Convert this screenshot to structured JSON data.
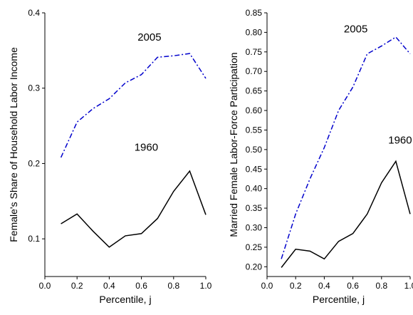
{
  "chart_data": [
    {
      "type": "line",
      "xlabel": "Percentile, j",
      "ylabel": "Female's Share of Household Labor Income",
      "xlim": [
        0.0,
        1.0
      ],
      "ylim": [
        0.05,
        0.4
      ],
      "xticks": [
        "0.0",
        "0.2",
        "0.4",
        "0.6",
        "0.8",
        "1.0"
      ],
      "yticks": [
        "0.1",
        "0.2",
        "0.3",
        "0.4"
      ],
      "grid": false,
      "x": [
        0.1,
        0.2,
        0.3,
        0.4,
        0.5,
        0.6,
        0.7,
        0.8,
        0.9,
        1.0
      ],
      "series": [
        {
          "name": "2005",
          "color": "#0000cc",
          "style": "dash-dot",
          "values": [
            0.208,
            0.255,
            0.273,
            0.286,
            0.307,
            0.318,
            0.341,
            0.343,
            0.346,
            0.313
          ]
        },
        {
          "name": "1960",
          "color": "#000000",
          "style": "solid",
          "values": [
            0.12,
            0.133,
            0.11,
            0.089,
            0.104,
            0.107,
            0.127,
            0.163,
            0.19,
            0.132
          ]
        }
      ],
      "annotations": [
        {
          "text": "2005",
          "x": 0.65,
          "y": 0.363
        },
        {
          "text": "1960",
          "x": 0.63,
          "y": 0.217
        }
      ]
    },
    {
      "type": "line",
      "xlabel": "Percentile, j",
      "ylabel": "Married Female Labor-Force Participation",
      "xlim": [
        0.0,
        1.0
      ],
      "ylim": [
        0.175,
        0.85
      ],
      "xticks": [
        "0.0",
        "0.2",
        "0.4",
        "0.6",
        "0.8",
        "1.0"
      ],
      "yticks": [
        "0.20",
        "0.25",
        "0.30",
        "0.35",
        "0.40",
        "0.45",
        "0.50",
        "0.55",
        "0.60",
        "0.65",
        "0.70",
        "0.75",
        "0.80",
        "0.85"
      ],
      "grid": false,
      "x": [
        0.1,
        0.2,
        0.3,
        0.4,
        0.5,
        0.6,
        0.7,
        0.8,
        0.9,
        1.0
      ],
      "series": [
        {
          "name": "2005",
          "color": "#0000cc",
          "style": "dash-dot",
          "values": [
            0.22,
            0.335,
            0.425,
            0.505,
            0.6,
            0.66,
            0.745,
            0.765,
            0.788,
            0.745
          ]
        },
        {
          "name": "1960",
          "color": "#000000",
          "style": "solid",
          "values": [
            0.198,
            0.245,
            0.24,
            0.22,
            0.265,
            0.285,
            0.335,
            0.415,
            0.47,
            0.335
          ]
        }
      ],
      "annotations": [
        {
          "text": "2005",
          "x": 0.62,
          "y": 0.8
        },
        {
          "text": "1960",
          "x": 0.93,
          "y": 0.515
        }
      ]
    }
  ]
}
